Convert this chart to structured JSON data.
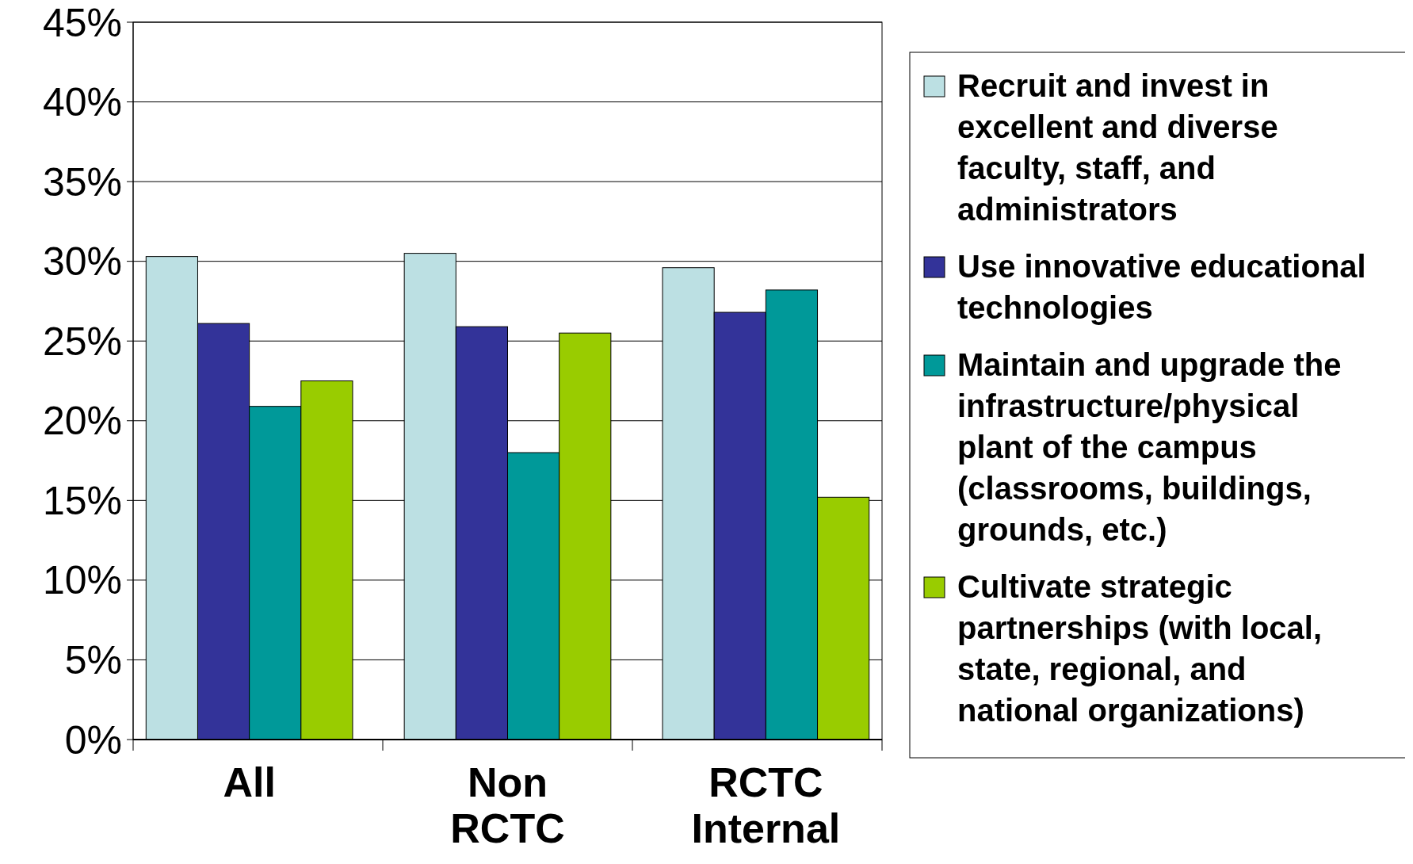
{
  "chart_data": {
    "type": "bar",
    "categories": [
      "All",
      "Non RCTC",
      "RCTC Internal"
    ],
    "series": [
      {
        "name": "Recruit and invest in excellent and diverse faculty, staff, and administrators",
        "color": "#bce0e3",
        "values": [
          30.3,
          30.5,
          29.6
        ]
      },
      {
        "name": "Use innovative educational technologies",
        "color": "#333399",
        "values": [
          26.1,
          25.9,
          26.8
        ]
      },
      {
        "name": "Maintain and upgrade the infrastructure/physical plant of the campus (classrooms, buildings, grounds, etc.)",
        "color": "#009999",
        "values": [
          20.9,
          18.0,
          28.2
        ]
      },
      {
        "name": "Cultivate strategic partnerships (with local, state, regional, and national organizations)",
        "color": "#99cc00",
        "values": [
          22.5,
          25.5,
          15.2
        ]
      }
    ],
    "ylim": [
      0,
      45
    ],
    "yticks": [
      {
        "value": 0,
        "label": "0%"
      },
      {
        "value": 5,
        "label": "5%"
      },
      {
        "value": 10,
        "label": "10%"
      },
      {
        "value": 15,
        "label": "15%"
      },
      {
        "value": 20,
        "label": "20%"
      },
      {
        "value": 25,
        "label": "25%"
      },
      {
        "value": 30,
        "label": "30%"
      },
      {
        "value": 35,
        "label": "35%"
      },
      {
        "value": 40,
        "label": "40%"
      },
      {
        "value": 45,
        "label": "45%"
      }
    ],
    "grid": "y",
    "legend": "right"
  }
}
